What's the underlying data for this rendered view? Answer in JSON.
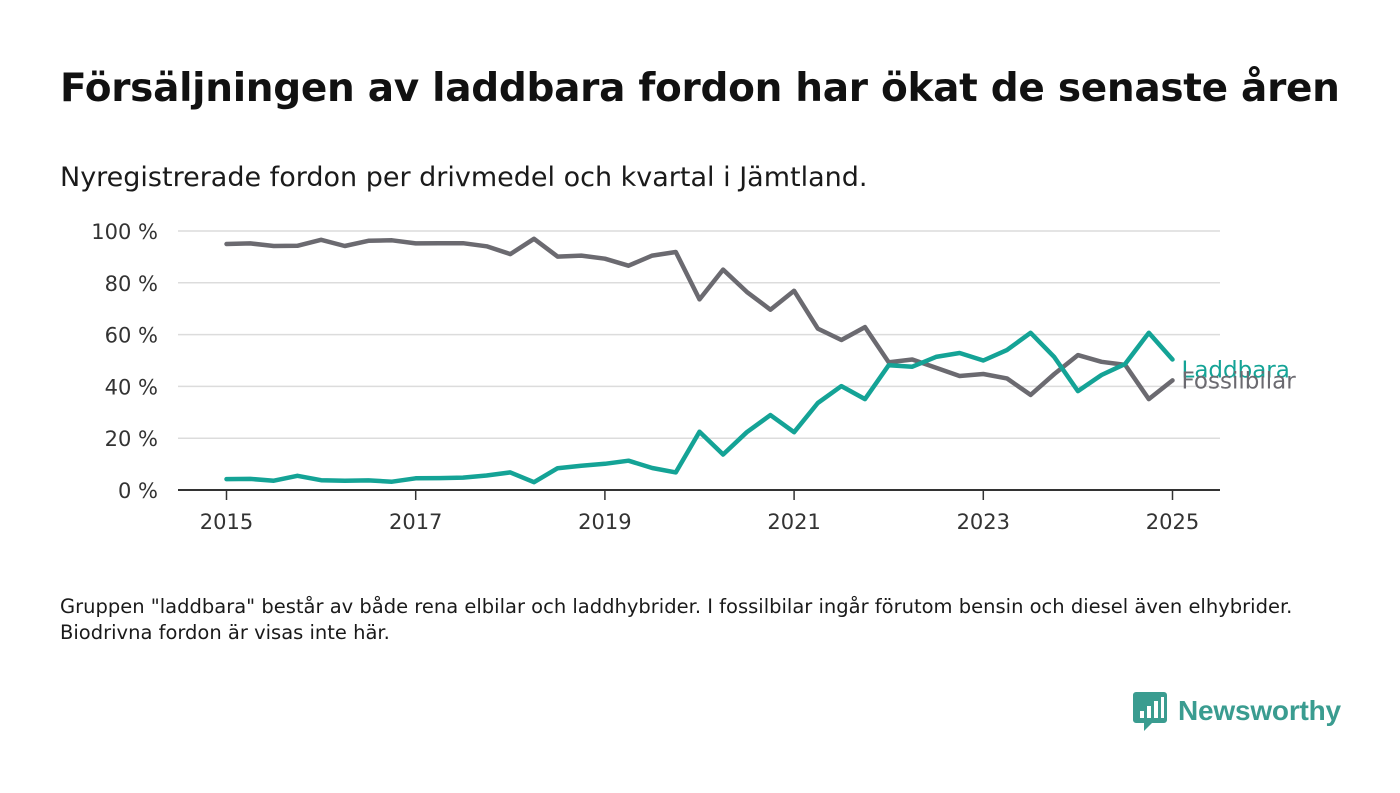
{
  "title": "Försäljningen av laddbara fordon har ökat de senaste åren",
  "subtitle": "Nyregistrerade fordon per drivmedel och kvartal i Jämtland.",
  "note": "Gruppen \"laddbara\" består av både rena elbilar och laddhybrider. I fossilbilar ingår förutom bensin och diesel även elhybrider. Biodrivna fordon är visas inte här.",
  "brand": {
    "name": "Newsworthy",
    "color": "#3a9c90",
    "icon": "newsworthy-logo-icon"
  },
  "chart_data": {
    "type": "line",
    "x_start": "2015-01",
    "x_interval": "quarter",
    "x_ticks": [
      "2015",
      "2017",
      "2019",
      "2021",
      "2023",
      "2025"
    ],
    "y_ticks": [
      "0 %",
      "20 %",
      "40 %",
      "60 %",
      "80 %",
      "100 %"
    ],
    "ylim": [
      0,
      100
    ],
    "grid": true,
    "series": [
      {
        "name": "Fossilbilar",
        "color": "#6b6a70",
        "values": [
          95,
          95.2,
          94.2,
          94.3,
          96.6,
          94.2,
          96.2,
          96.4,
          95.2,
          95.3,
          95.3,
          94.1,
          91.1,
          97,
          90.1,
          90.5,
          89.3,
          86.6,
          90.5,
          91.9,
          73.6,
          85.1,
          76.5,
          69.6,
          76.9,
          62.3,
          57.9,
          62.9,
          49.3,
          50.4,
          47.2,
          44,
          44.8,
          43.1,
          36.7,
          44.8,
          52.1,
          49.5,
          48.3,
          35.1,
          42.3
        ]
      },
      {
        "name": "Laddbara",
        "color": "#14a396",
        "values": [
          4.2,
          4.3,
          3.6,
          5.5,
          3.8,
          3.6,
          3.7,
          3.2,
          4.5,
          4.6,
          4.8,
          5.6,
          6.8,
          3,
          8.4,
          9.4,
          10.1,
          11.3,
          8.5,
          6.8,
          22.5,
          13.7,
          22.3,
          28.9,
          22.3,
          33.6,
          40.1,
          35.1,
          48.2,
          47.6,
          51.4,
          52.9,
          50,
          54,
          60.7,
          51.3,
          38.2,
          44.4,
          48.7,
          60.7,
          50.4
        ]
      }
    ]
  }
}
